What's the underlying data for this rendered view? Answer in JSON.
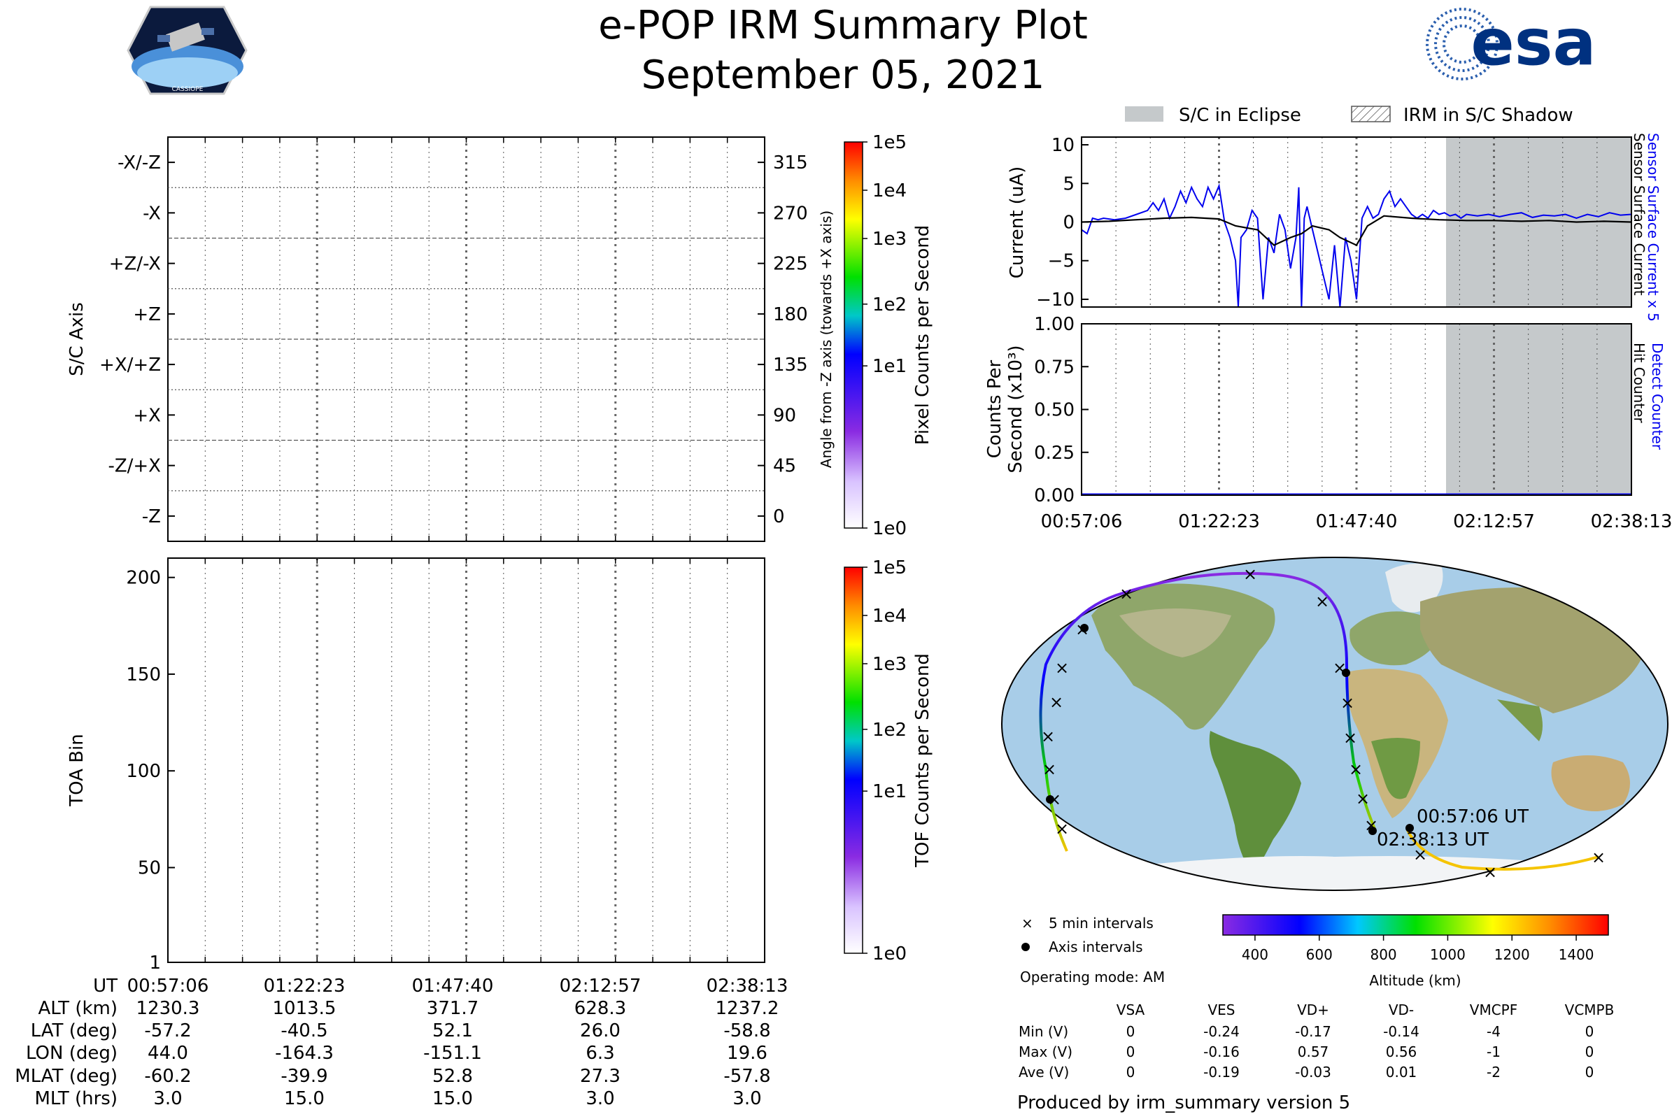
{
  "header": {
    "title": "e-POP IRM Summary Plot",
    "date": "September 05, 2021",
    "left_logo_text": "CASSIOPE",
    "right_logo_text": "esa"
  },
  "colors": {
    "eclipse": "#c5c9cb",
    "sensor_line": "#0000ee",
    "surface_line": "#000000",
    "grid": "#555555"
  },
  "chart_data": [
    {
      "id": "sc-axis",
      "type": "heatmap",
      "ylabel": "S/C Axis",
      "right_label": "Angle from -Z axis (towards +X axis)",
      "y_categories": [
        "-X/-Z",
        "-X",
        "+Z/-X",
        "+Z",
        "+X/+Z",
        "+X",
        "-Z/+X",
        "-Z"
      ],
      "right_ticks": [
        "315",
        "270",
        "225",
        "180",
        "135",
        "90",
        "45",
        "0"
      ],
      "colorbar_label": "Pixel Counts per Second",
      "colorbar_ticks": [
        "1e5",
        "1e4",
        "1e3",
        "1e2",
        "1e1",
        "1e0"
      ]
    },
    {
      "id": "toa",
      "type": "heatmap",
      "ylabel": "TOA Bin",
      "yticks": [
        "200",
        "150",
        "100",
        "50",
        "1"
      ],
      "ylim": [
        1,
        210
      ],
      "colorbar_label": "TOF Counts per Second",
      "colorbar_ticks": [
        "1e5",
        "1e4",
        "1e3",
        "1e2",
        "1e1",
        "1e0"
      ]
    },
    {
      "id": "current",
      "type": "line",
      "ylabel": "Current (uA)",
      "ylim": [
        -11,
        11
      ],
      "yticks": [
        "10",
        "5",
        "0",
        "−5",
        "−10"
      ],
      "right_labels": [
        "Sensor Surface Current x 5",
        "Sensor Surface Current"
      ],
      "series": [
        {
          "name": "Sensor Surface Current x 5",
          "x": [
            0,
            1,
            2,
            3,
            4,
            6,
            8,
            10,
            12,
            13,
            14,
            15,
            16,
            17,
            18,
            19,
            20,
            21,
            22,
            23,
            24,
            25,
            26,
            27,
            28,
            28.5,
            29,
            30,
            31,
            32,
            33,
            34,
            35,
            36,
            37,
            38,
            39,
            39.5,
            40,
            40.5,
            41,
            42,
            43,
            44,
            45,
            46,
            47,
            48,
            49,
            50,
            51,
            52,
            53,
            54,
            55,
            56,
            57,
            58,
            59,
            60,
            61,
            62,
            63,
            64,
            65,
            66,
            67,
            68,
            69,
            70,
            72,
            74,
            76,
            78,
            80,
            82,
            84,
            86,
            88,
            90,
            92,
            94,
            96,
            98,
            100
          ],
          "values": [
            -1,
            -1.5,
            0.5,
            0.3,
            0.5,
            0.3,
            0.5,
            1,
            1.5,
            2.5,
            1.5,
            3,
            0.5,
            2,
            4,
            2.5,
            4.5,
            3,
            2,
            4.5,
            3,
            4.7,
            0,
            -2,
            -5,
            -11,
            -2,
            -1,
            1.5,
            0.5,
            -10,
            -2,
            -4,
            1,
            -1,
            -6,
            -2,
            4.5,
            -11,
            0.5,
            2,
            -1,
            -4,
            -7,
            -10,
            -3,
            -11,
            -2,
            -5,
            -10,
            0.5,
            2,
            0.5,
            1,
            3,
            4,
            2,
            3,
            2,
            1,
            0.5,
            1,
            0.5,
            1.5,
            1,
            1.2,
            0.8,
            1,
            0.5,
            1,
            0.8,
            1,
            0.7,
            1,
            1.2,
            0.6,
            0.9,
            0.8,
            1,
            0.5,
            1,
            0.7,
            1.2,
            0.9,
            1
          ]
        },
        {
          "name": "Sensor Surface Current",
          "x": [
            0,
            5,
            10,
            15,
            20,
            25,
            28,
            32,
            35,
            38,
            40,
            42,
            45,
            47,
            50,
            52,
            55,
            60,
            65,
            70,
            75,
            80,
            85,
            90,
            95,
            100
          ],
          "values": [
            0,
            0.1,
            0.3,
            0.5,
            0.6,
            0.4,
            -0.5,
            -1,
            -3,
            -2,
            -1.5,
            -0.5,
            -1,
            -2,
            -3,
            -0.5,
            0.8,
            0.5,
            0.3,
            0.2,
            0.2,
            0.1,
            0.2,
            0,
            0.1,
            0
          ]
        }
      ]
    },
    {
      "id": "counts",
      "type": "line",
      "ylabel_line1": "Counts Per",
      "ylabel_line2": "Second (x10³)",
      "ylim": [
        0,
        1.0
      ],
      "yticks": [
        "1.00",
        "0.75",
        "0.50",
        "0.25",
        "0.00"
      ],
      "right_labels": [
        "Detect Counter",
        "Hit Counter"
      ],
      "series": [
        {
          "name": "Detect Counter",
          "x": [
            0,
            100
          ],
          "values": [
            0,
            0
          ]
        },
        {
          "name": "Hit Counter",
          "x": [
            0,
            100
          ],
          "values": [
            0,
            0
          ]
        }
      ]
    },
    {
      "id": "orbit-altitude-colorbar",
      "type": "heatmap",
      "title": "Altitude (km)",
      "range": [
        300,
        1500
      ],
      "ticks": [
        "400",
        "600",
        "800",
        "1000",
        "1200",
        "1400"
      ]
    }
  ],
  "time_axis": {
    "ticks": [
      "00:57:06",
      "01:22:23",
      "01:47:40",
      "02:12:57",
      "02:38:13"
    ]
  },
  "eclipse": {
    "start_frac": 0.668,
    "end_frac": 1.0
  },
  "legend": {
    "eclipse": "S/C in Eclipse",
    "shadow": "IRM in S/C Shadow",
    "five_min": "5 min intervals",
    "axis": "Axis intervals",
    "mode": "Operating mode: AM"
  },
  "map": {
    "start_label": "00:57:06 UT",
    "end_label": "02:38:13 UT"
  },
  "ephemeris": {
    "rows": [
      {
        "label": "UT",
        "values": [
          "00:57:06",
          "01:22:23",
          "01:47:40",
          "02:12:57",
          "02:38:13"
        ]
      },
      {
        "label": "ALT (km)",
        "values": [
          "1230.3",
          "1013.5",
          "371.7",
          "628.3",
          "1237.2"
        ]
      },
      {
        "label": "LAT (deg)",
        "values": [
          "-57.2",
          "-40.5",
          "52.1",
          "26.0",
          "-58.8"
        ]
      },
      {
        "label": "LON (deg)",
        "values": [
          "44.0",
          "-164.3",
          "-151.1",
          "6.3",
          "19.6"
        ]
      },
      {
        "label": "MLAT (deg)",
        "values": [
          "-60.2",
          "-39.9",
          "52.8",
          "27.3",
          "-57.8"
        ]
      },
      {
        "label": "MLT (hrs)",
        "values": [
          "3.0",
          "15.0",
          "15.0",
          "3.0",
          "3.0"
        ]
      }
    ]
  },
  "voltages": {
    "headers": [
      "VSA",
      "VES",
      "VD+",
      "VD-",
      "VMCPF",
      "VCMPB"
    ],
    "rows": [
      {
        "label": "Min (V)",
        "values": [
          "0",
          "-0.24",
          "-0.17",
          "-0.14",
          "-4",
          "0"
        ]
      },
      {
        "label": "Max (V)",
        "values": [
          "0",
          "-0.16",
          "0.57",
          "0.56",
          "-1",
          "0"
        ]
      },
      {
        "label": "Ave (V)",
        "values": [
          "0",
          "-0.19",
          "-0.03",
          "0.01",
          "-2",
          "0"
        ]
      }
    ]
  },
  "footer": "Produced by irm_summary version 5"
}
